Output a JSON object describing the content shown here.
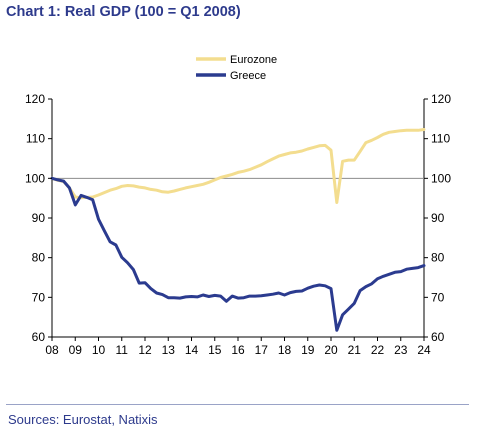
{
  "header": {
    "title": "Chart 1: Real GDP (100 = Q1 2008)"
  },
  "footer": {
    "source": "Sources: Eurostat, Natixis"
  },
  "chart_data": {
    "type": "line",
    "ylim": [
      60,
      120
    ],
    "yticks": [
      60,
      70,
      80,
      90,
      100,
      110,
      120
    ],
    "xlim": [
      2008,
      2024
    ],
    "xticks": [
      2008,
      2009,
      2010,
      2011,
      2012,
      2013,
      2014,
      2015,
      2016,
      2017,
      2018,
      2019,
      2020,
      2021,
      2022,
      2023,
      2024
    ],
    "xtick_labels": [
      "08",
      "09",
      "10",
      "11",
      "12",
      "13",
      "14",
      "15",
      "16",
      "17",
      "18",
      "19",
      "20",
      "21",
      "22",
      "23",
      "24"
    ],
    "reference_line": 100,
    "grid": false,
    "legend_position": "top-center",
    "axis_labels_both_sides": true,
    "series": [
      {
        "name": "Eurozone",
        "color": "#f3dd8f",
        "points": [
          [
            2008.0,
            100
          ],
          [
            2008.25,
            99.5
          ],
          [
            2008.5,
            99.2
          ],
          [
            2008.75,
            97.6
          ],
          [
            2009.0,
            95.3
          ],
          [
            2009.25,
            95.1
          ],
          [
            2009.5,
            95.2
          ],
          [
            2009.75,
            95.3
          ],
          [
            2010.0,
            95.8
          ],
          [
            2010.25,
            96.4
          ],
          [
            2010.5,
            97.0
          ],
          [
            2010.75,
            97.4
          ],
          [
            2011.0,
            98.0
          ],
          [
            2011.25,
            98.2
          ],
          [
            2011.5,
            98.1
          ],
          [
            2011.75,
            97.8
          ],
          [
            2012.0,
            97.6
          ],
          [
            2012.25,
            97.2
          ],
          [
            2012.5,
            97.0
          ],
          [
            2012.75,
            96.6
          ],
          [
            2013.0,
            96.5
          ],
          [
            2013.25,
            96.8
          ],
          [
            2013.5,
            97.2
          ],
          [
            2013.75,
            97.6
          ],
          [
            2014.0,
            97.9
          ],
          [
            2014.25,
            98.2
          ],
          [
            2014.5,
            98.5
          ],
          [
            2014.75,
            99.0
          ],
          [
            2015.0,
            99.6
          ],
          [
            2015.25,
            100.2
          ],
          [
            2015.5,
            100.6
          ],
          [
            2015.75,
            101.0
          ],
          [
            2016.0,
            101.5
          ],
          [
            2016.25,
            101.8
          ],
          [
            2016.5,
            102.2
          ],
          [
            2016.75,
            102.8
          ],
          [
            2017.0,
            103.4
          ],
          [
            2017.25,
            104.2
          ],
          [
            2017.5,
            104.9
          ],
          [
            2017.75,
            105.6
          ],
          [
            2018.0,
            106.0
          ],
          [
            2018.25,
            106.4
          ],
          [
            2018.5,
            106.6
          ],
          [
            2018.75,
            106.9
          ],
          [
            2019.0,
            107.4
          ],
          [
            2019.25,
            107.8
          ],
          [
            2019.5,
            108.2
          ],
          [
            2019.75,
            108.3
          ],
          [
            2020.0,
            107.1
          ],
          [
            2020.25,
            93.9
          ],
          [
            2020.5,
            104.3
          ],
          [
            2020.75,
            104.6
          ],
          [
            2021.0,
            104.6
          ],
          [
            2021.25,
            106.8
          ],
          [
            2021.5,
            109.0
          ],
          [
            2021.75,
            109.6
          ],
          [
            2022.0,
            110.3
          ],
          [
            2022.25,
            111.1
          ],
          [
            2022.5,
            111.6
          ],
          [
            2022.75,
            111.8
          ],
          [
            2023.0,
            112.0
          ],
          [
            2023.25,
            112.1
          ],
          [
            2023.5,
            112.1
          ],
          [
            2023.75,
            112.1
          ],
          [
            2024.0,
            112.3
          ]
        ]
      },
      {
        "name": "Greece",
        "color": "#2b3b8f",
        "points": [
          [
            2008.0,
            100
          ],
          [
            2008.25,
            99.6
          ],
          [
            2008.5,
            99.3
          ],
          [
            2008.75,
            97.6
          ],
          [
            2009.0,
            93.3
          ],
          [
            2009.25,
            95.7
          ],
          [
            2009.5,
            95.2
          ],
          [
            2009.75,
            94.6
          ],
          [
            2010.0,
            89.7
          ],
          [
            2010.25,
            86.8
          ],
          [
            2010.5,
            84.0
          ],
          [
            2010.75,
            83.2
          ],
          [
            2011.0,
            80.1
          ],
          [
            2011.25,
            78.7
          ],
          [
            2011.5,
            77.0
          ],
          [
            2011.75,
            73.6
          ],
          [
            2012.0,
            73.7
          ],
          [
            2012.25,
            72.2
          ],
          [
            2012.5,
            71.1
          ],
          [
            2012.75,
            70.7
          ],
          [
            2013.0,
            69.9
          ],
          [
            2013.25,
            69.9
          ],
          [
            2013.5,
            69.8
          ],
          [
            2013.75,
            70.1
          ],
          [
            2014.0,
            70.2
          ],
          [
            2014.25,
            70.1
          ],
          [
            2014.5,
            70.6
          ],
          [
            2014.75,
            70.2
          ],
          [
            2015.0,
            70.5
          ],
          [
            2015.25,
            70.3
          ],
          [
            2015.5,
            69.0
          ],
          [
            2015.75,
            70.3
          ],
          [
            2016.0,
            69.8
          ],
          [
            2016.25,
            69.9
          ],
          [
            2016.5,
            70.3
          ],
          [
            2016.75,
            70.3
          ],
          [
            2017.0,
            70.4
          ],
          [
            2017.25,
            70.6
          ],
          [
            2017.5,
            70.8
          ],
          [
            2017.75,
            71.1
          ],
          [
            2018.0,
            70.6
          ],
          [
            2018.25,
            71.2
          ],
          [
            2018.5,
            71.5
          ],
          [
            2018.75,
            71.6
          ],
          [
            2019.0,
            72.3
          ],
          [
            2019.25,
            72.8
          ],
          [
            2019.5,
            73.1
          ],
          [
            2019.75,
            72.9
          ],
          [
            2020.0,
            72.2
          ],
          [
            2020.25,
            61.7
          ],
          [
            2020.5,
            65.6
          ],
          [
            2020.75,
            67.0
          ],
          [
            2021.0,
            68.5
          ],
          [
            2021.25,
            71.7
          ],
          [
            2021.5,
            72.7
          ],
          [
            2021.75,
            73.4
          ],
          [
            2022.0,
            74.7
          ],
          [
            2022.25,
            75.3
          ],
          [
            2022.5,
            75.8
          ],
          [
            2022.75,
            76.3
          ],
          [
            2023.0,
            76.5
          ],
          [
            2023.25,
            77.1
          ],
          [
            2023.5,
            77.3
          ],
          [
            2023.75,
            77.5
          ],
          [
            2024.0,
            78.0
          ]
        ]
      }
    ]
  }
}
